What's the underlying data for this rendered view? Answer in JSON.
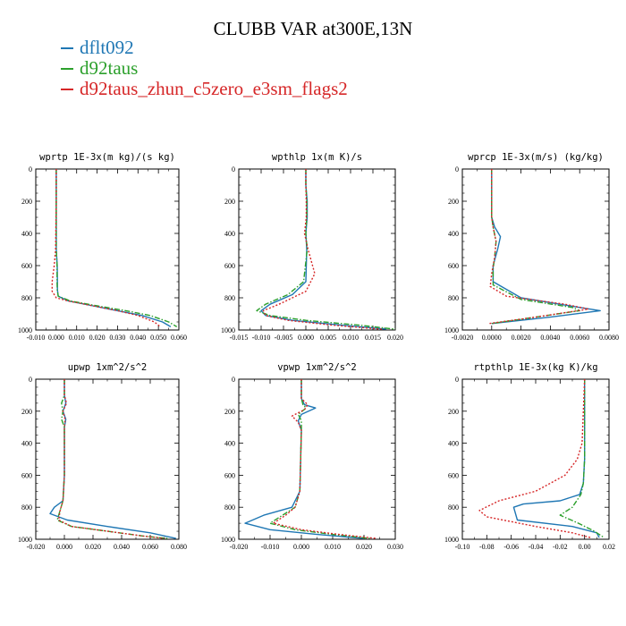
{
  "figure": {
    "title": "CLUBB VAR at300E,13N",
    "legend": [
      {
        "label": "dflt092",
        "color": "#1f77b4",
        "dash": "solid"
      },
      {
        "label": "d92taus",
        "color": "#2ca02c",
        "dash": "dashdot"
      },
      {
        "label": "d92taus_zhun_c5zero_e3sm_flags2",
        "color": "#d62728",
        "dash": "dotted"
      }
    ]
  },
  "chart_data": [
    {
      "type": "line",
      "title": "wprtp  1E-3x(m kg)/(s kg)",
      "xlim": [
        -0.01,
        0.06
      ],
      "xticks": [
        -0.01,
        0.0,
        0.01,
        0.02,
        0.03,
        0.04,
        0.05,
        0.06
      ],
      "xtick_labels": [
        "-0.010",
        "0.000",
        "0.010",
        "0.020",
        "0.030",
        "0.040",
        "0.050",
        "0.060"
      ],
      "ylim": [
        1000,
        0
      ],
      "yticks": [
        0,
        200,
        400,
        600,
        800,
        1000
      ],
      "series": [
        {
          "name": "dflt092",
          "x": [
            0.0,
            0.0,
            0.0,
            0.0005,
            0.0006,
            0.0006,
            0.001,
            0.006,
            0.018,
            0.03,
            0.042,
            0.052,
            0.056
          ],
          "y": [
            0,
            200,
            500,
            600,
            700,
            750,
            790,
            820,
            850,
            880,
            910,
            950,
            980
          ]
        },
        {
          "name": "d92taus",
          "x": [
            0.0,
            0.0,
            0.0,
            0.0004,
            0.0004,
            0.0005,
            0.001,
            0.007,
            0.02,
            0.034,
            0.046,
            0.055,
            0.059
          ],
          "y": [
            0,
            200,
            500,
            600,
            700,
            750,
            790,
            820,
            850,
            880,
            910,
            950,
            980
          ]
        },
        {
          "name": "d92taus_zhun_c5zero_e3sm_flags2",
          "x": [
            0.0,
            0.0,
            -0.0003,
            -0.001,
            -0.002,
            -0.002,
            0.0,
            0.006,
            0.018,
            0.03,
            0.04,
            0.048,
            0.051
          ],
          "y": [
            0,
            200,
            500,
            600,
            700,
            760,
            800,
            820,
            850,
            880,
            910,
            950,
            980
          ]
        }
      ]
    },
    {
      "type": "line",
      "title": "wpthlp  1x(m K)/s",
      "xlim": [
        -0.015,
        0.02
      ],
      "xticks": [
        -0.015,
        -0.01,
        -0.005,
        0.0,
        0.005,
        0.01,
        0.015,
        0.02
      ],
      "xtick_labels": [
        "-0.015",
        "-0.010",
        "-0.005",
        "0.000",
        "0.005",
        "0.010",
        "0.015",
        "0.020"
      ],
      "ylim": [
        1000,
        0
      ],
      "yticks": [
        0,
        200,
        400,
        600,
        800,
        1000
      ],
      "series": [
        {
          "name": "dflt092",
          "x": [
            0.0,
            0.0,
            0.0003,
            0.0003,
            0.0,
            0.0002,
            0.0,
            -0.003,
            -0.008,
            -0.01,
            -0.009,
            -0.003,
            0.008,
            0.018
          ],
          "y": [
            0,
            100,
            200,
            300,
            400,
            500,
            700,
            780,
            840,
            880,
            910,
            940,
            970,
            995
          ]
        },
        {
          "name": "d92taus",
          "x": [
            0.0,
            0.0,
            0.0002,
            0.0002,
            0.0,
            0.0003,
            -0.0005,
            -0.004,
            -0.009,
            -0.011,
            -0.008,
            0.0,
            0.012,
            0.02
          ],
          "y": [
            0,
            100,
            200,
            300,
            400,
            500,
            700,
            780,
            840,
            880,
            910,
            940,
            970,
            995
          ]
        },
        {
          "name": "d92taus_zhun_c5zero_e3sm_flags2",
          "x": [
            0.0,
            0.0,
            0.0001,
            0.0001,
            -0.0003,
            0.0005,
            0.002,
            0.0,
            -0.006,
            -0.0095,
            -0.009,
            -0.004,
            0.006,
            0.017
          ],
          "y": [
            0,
            100,
            200,
            300,
            400,
            500,
            650,
            760,
            840,
            880,
            910,
            940,
            970,
            995
          ]
        }
      ]
    },
    {
      "type": "line",
      "title": "wprcp  1E-3x(m/s) (kg/kg)",
      "xlim": [
        -0.002,
        0.008
      ],
      "xticks": [
        -0.002,
        0.0,
        0.002,
        0.004,
        0.006,
        0.008
      ],
      "xtick_labels": [
        "-0.0020",
        "0.0000",
        "0.0020",
        "0.0040",
        "0.0060",
        "0.0080"
      ],
      "ylim": [
        1000,
        0
      ],
      "yticks": [
        0,
        200,
        400,
        600,
        800,
        1000
      ],
      "series": [
        {
          "name": "dflt092",
          "x": [
            0.0,
            0.0,
            0.0002,
            0.0006,
            0.0004,
            0.0001,
            0.0001,
            0.002,
            0.006,
            0.0074,
            0.004,
            0.0
          ],
          "y": [
            0,
            300,
            360,
            420,
            500,
            600,
            700,
            800,
            860,
            880,
            920,
            960
          ]
        },
        {
          "name": "d92taus",
          "x": [
            0.0,
            0.0,
            0.0001,
            0.0003,
            0.0002,
            0.0001,
            0.0001,
            0.002,
            0.0055,
            0.006,
            0.003,
            0.0
          ],
          "y": [
            0,
            300,
            360,
            450,
            550,
            620,
            720,
            810,
            860,
            880,
            920,
            960
          ]
        },
        {
          "name": "d92taus_zhun_c5zero_e3sm_flags2",
          "x": [
            0.0,
            0.0,
            0.0001,
            0.0003,
            0.0002,
            0.0,
            -0.0001,
            0.001,
            0.005,
            0.0066,
            0.003,
            -0.0002
          ],
          "y": [
            0,
            300,
            360,
            450,
            550,
            650,
            730,
            790,
            840,
            870,
            920,
            960
          ]
        }
      ]
    },
    {
      "type": "line",
      "title": "upwp  1xm^2/s^2",
      "xlim": [
        -0.02,
        0.08
      ],
      "xticks": [
        -0.02,
        0.0,
        0.02,
        0.04,
        0.06,
        0.08
      ],
      "xtick_labels": [
        "-0.020",
        "0.000",
        "0.020",
        "0.040",
        "0.060",
        "0.080"
      ],
      "ylim": [
        1000,
        0
      ],
      "yticks": [
        0,
        200,
        400,
        600,
        800,
        1000
      ],
      "series": [
        {
          "name": "dflt092",
          "x": [
            0.0,
            0.0,
            0.001,
            -0.001,
            0.001,
            0.0,
            0.0,
            -0.001,
            -0.007,
            -0.01,
            0.002,
            0.03,
            0.06,
            0.078
          ],
          "y": [
            0,
            100,
            150,
            200,
            250,
            300,
            600,
            760,
            800,
            840,
            880,
            920,
            960,
            995
          ]
        },
        {
          "name": "d92taus",
          "x": [
            0.0,
            0.0,
            -0.002,
            -0.001,
            -0.002,
            0.0,
            0.0,
            -0.001,
            -0.003,
            -0.005,
            0.005,
            0.03,
            0.055,
            0.072
          ],
          "y": [
            0,
            100,
            150,
            200,
            250,
            300,
            600,
            760,
            820,
            880,
            920,
            950,
            980,
            995
          ]
        },
        {
          "name": "d92taus_zhun_c5zero_e3sm_flags2",
          "x": [
            0.0,
            0.0,
            0.0015,
            -0.001,
            0.0005,
            0.0,
            0.0,
            -0.001,
            -0.003,
            -0.004,
            0.005,
            0.03,
            0.055,
            0.07
          ],
          "y": [
            0,
            100,
            150,
            200,
            250,
            300,
            600,
            760,
            820,
            880,
            920,
            950,
            980,
            995
          ]
        }
      ]
    },
    {
      "type": "line",
      "title": "vpwp  1xm^2/s^2",
      "xlim": [
        -0.02,
        0.03
      ],
      "xticks": [
        -0.02,
        -0.01,
        0.0,
        0.01,
        0.02,
        0.03
      ],
      "xtick_labels": [
        "-0.020",
        "-0.010",
        "0.000",
        "0.010",
        "0.020",
        "0.030"
      ],
      "ylim": [
        1000,
        0
      ],
      "yticks": [
        0,
        200,
        400,
        600,
        800,
        1000
      ],
      "series": [
        {
          "name": "dflt092",
          "x": [
            0.0,
            0.0,
            0.001,
            0.0045,
            0.0,
            -0.001,
            0.0,
            -0.0005,
            -0.003,
            -0.012,
            -0.018,
            -0.01,
            0.005,
            0.02
          ],
          "y": [
            0,
            120,
            160,
            180,
            220,
            260,
            320,
            700,
            800,
            850,
            900,
            940,
            970,
            995
          ]
        },
        {
          "name": "d92taus",
          "x": [
            0.0,
            0.0,
            0.0005,
            0.0015,
            -0.001,
            0.0,
            0.0,
            -0.0005,
            -0.002,
            -0.006,
            -0.01,
            -0.002,
            0.01,
            0.022
          ],
          "y": [
            0,
            120,
            160,
            180,
            220,
            260,
            320,
            700,
            800,
            850,
            900,
            940,
            970,
            995
          ]
        },
        {
          "name": "d92taus_zhun_c5zero_e3sm_flags2",
          "x": [
            0.0,
            0.0,
            0.002,
            0.001,
            -0.003,
            -0.001,
            0.0,
            -0.0005,
            -0.002,
            -0.005,
            -0.009,
            0.0,
            0.012,
            0.024
          ],
          "y": [
            0,
            120,
            160,
            190,
            230,
            270,
            320,
            700,
            800,
            850,
            900,
            940,
            970,
            995
          ]
        }
      ]
    },
    {
      "type": "line",
      "title": "rtpthlp  1E-3x(kg K)/kg",
      "xlim": [
        -0.1,
        0.02
      ],
      "xticks": [
        -0.1,
        -0.08,
        -0.06,
        -0.04,
        -0.02,
        0.0,
        0.02
      ],
      "xtick_labels": [
        "-0.10",
        "-0.08",
        "-0.06",
        "-0.04",
        "-0.02",
        "0.00",
        "0.02"
      ],
      "ylim": [
        1000,
        0
      ],
      "yticks": [
        0,
        200,
        400,
        600,
        800,
        1000
      ],
      "series": [
        {
          "name": "dflt092",
          "x": [
            0.0,
            0.0,
            -0.001,
            -0.004,
            -0.02,
            -0.05,
            -0.058,
            -0.055,
            -0.01,
            0.01,
            0.012
          ],
          "y": [
            0,
            500,
            650,
            720,
            760,
            780,
            800,
            880,
            920,
            960,
            990
          ]
        },
        {
          "name": "d92taus",
          "x": [
            0.0,
            0.0,
            -0.001,
            -0.003,
            -0.01,
            -0.02,
            -0.005,
            0.008,
            0.016
          ],
          "y": [
            0,
            500,
            650,
            720,
            800,
            850,
            900,
            950,
            990
          ]
        },
        {
          "name": "d92taus_zhun_c5zero_e3sm_flags2",
          "x": [
            0.0,
            -0.002,
            -0.006,
            -0.016,
            -0.04,
            -0.07,
            -0.086,
            -0.08,
            -0.04,
            -0.01,
            0.005
          ],
          "y": [
            0,
            400,
            500,
            600,
            700,
            760,
            820,
            860,
            920,
            960,
            990
          ]
        }
      ]
    }
  ]
}
